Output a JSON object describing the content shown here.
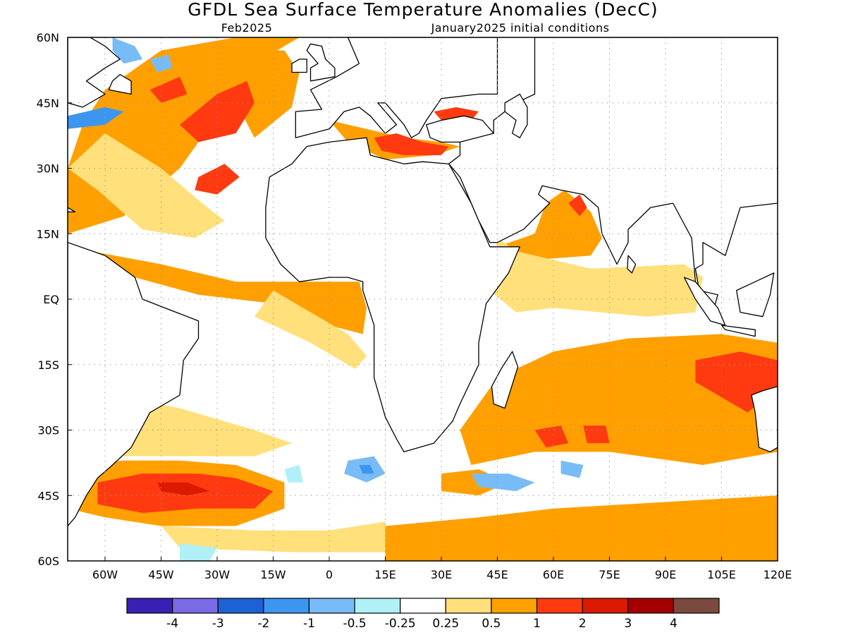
{
  "header": {
    "title": "GFDL Sea Surface Temperature Anomalies (DecC)",
    "valid_month": "Feb2025",
    "init_conditions": "January2025 initial conditions"
  },
  "map": {
    "lon_range": [
      -70,
      120
    ],
    "lat_range": [
      -60,
      60
    ],
    "gridlines": true,
    "x_ticks": [
      {
        "lon": -60,
        "label": "60W"
      },
      {
        "lon": -45,
        "label": "45W"
      },
      {
        "lon": -30,
        "label": "30W"
      },
      {
        "lon": -15,
        "label": "15W"
      },
      {
        "lon": 0,
        "label": "0"
      },
      {
        "lon": 15,
        "label": "15E"
      },
      {
        "lon": 30,
        "label": "30E"
      },
      {
        "lon": 45,
        "label": "45E"
      },
      {
        "lon": 60,
        "label": "60E"
      },
      {
        "lon": 75,
        "label": "75E"
      },
      {
        "lon": 90,
        "label": "90E"
      },
      {
        "lon": 105,
        "label": "105E"
      },
      {
        "lon": 120,
        "label": "120E"
      }
    ],
    "y_ticks": [
      {
        "lat": 60,
        "label": "60N"
      },
      {
        "lat": 45,
        "label": "45N"
      },
      {
        "lat": 30,
        "label": "30N"
      },
      {
        "lat": 15,
        "label": "15N"
      },
      {
        "lat": 0,
        "label": "EQ"
      },
      {
        "lat": -15,
        "label": "15S"
      },
      {
        "lat": -30,
        "label": "30S"
      },
      {
        "lat": -45,
        "label": "45S"
      },
      {
        "lat": -60,
        "label": "60S"
      }
    ]
  },
  "colorbar": {
    "colors": [
      "#3a1fb4",
      "#7b6ae6",
      "#1c62d4",
      "#3c96f0",
      "#78bcf7",
      "#b0f0f7",
      "#ffffff",
      "#ffe07a",
      "#ffa000",
      "#ff3a10",
      "#dc1a00",
      "#a50000",
      "#7a4a3e"
    ],
    "labels": [
      "-4",
      "-3",
      "-2",
      "-1",
      "-0.5",
      "-0.25",
      "0.25",
      "0.5",
      "1",
      "2",
      "3",
      "4"
    ]
  },
  "chart_data": {
    "type": "heatmap",
    "title": "GFDL Sea Surface Temperature Anomalies (DecC)",
    "xlim": [
      -70,
      120
    ],
    "ylim": [
      -60,
      60
    ],
    "bins": [
      -4,
      -3,
      -2,
      -1,
      -0.5,
      -0.25,
      0.25,
      0.5,
      1,
      2,
      3,
      4
    ],
    "regions": [
      {
        "level": "0.5",
        "color": "#ffa000",
        "poly": [
          [
            -70,
            15
          ],
          [
            -55,
            19
          ],
          [
            -40,
            30
          ],
          [
            -30,
            42
          ],
          [
            -20,
            50
          ],
          [
            -14,
            57
          ],
          [
            -8,
            60
          ],
          [
            -25,
            60
          ],
          [
            -45,
            57
          ],
          [
            -60,
            48
          ],
          [
            -66,
            40
          ],
          [
            -70,
            30
          ]
        ]
      },
      {
        "level": "0.5",
        "color": "#ffa000",
        "poly": [
          [
            -70,
            12
          ],
          [
            -45,
            8
          ],
          [
            -25,
            4
          ],
          [
            -10,
            4
          ],
          [
            8,
            4
          ],
          [
            10,
            -2
          ],
          [
            9,
            -8
          ],
          [
            0,
            -6
          ],
          [
            -15,
            -1
          ],
          [
            -35,
            1
          ],
          [
            -52,
            5
          ],
          [
            -62,
            9
          ]
        ]
      },
      {
        "level": "0.5",
        "color": "#ffa000",
        "poly": [
          [
            -20,
            37
          ],
          [
            -10,
            44
          ],
          [
            -8,
            52
          ],
          [
            -12,
            57
          ],
          [
            -22,
            57
          ],
          [
            -28,
            50
          ]
        ]
      },
      {
        "level": "0.25",
        "color": "#ffe07a",
        "poly": [
          [
            -60,
            38
          ],
          [
            -45,
            30
          ],
          [
            -34,
            22
          ],
          [
            -28,
            18
          ],
          [
            -36,
            14
          ],
          [
            -50,
            16
          ],
          [
            -62,
            25
          ],
          [
            -70,
            30
          ]
        ]
      },
      {
        "level": "0.25",
        "color": "#ffe07a",
        "poly": [
          [
            -15,
            2
          ],
          [
            -5,
            -3
          ],
          [
            5,
            -8
          ],
          [
            10,
            -13
          ],
          [
            7,
            -16
          ],
          [
            -5,
            -10
          ],
          [
            -20,
            -4
          ]
        ]
      },
      {
        "level": "1",
        "color": "#ff3a10",
        "poly": [
          [
            -40,
            40
          ],
          [
            -30,
            47
          ],
          [
            -22,
            50
          ],
          [
            -20,
            45
          ],
          [
            -25,
            38
          ],
          [
            -35,
            36
          ]
        ]
      },
      {
        "level": "1",
        "color": "#ff3a10",
        "poly": [
          [
            -48,
            48
          ],
          [
            -40,
            51
          ],
          [
            -38,
            47
          ],
          [
            -45,
            45
          ]
        ]
      },
      {
        "level": "1",
        "color": "#ff3a10",
        "poly": [
          [
            -35,
            28
          ],
          [
            -28,
            31
          ],
          [
            -24,
            28
          ],
          [
            -30,
            24
          ],
          [
            -36,
            25
          ]
        ]
      },
      {
        "level": "-0.5",
        "color": "#78bcf7",
        "poly": [
          [
            -58,
            60
          ],
          [
            -52,
            58
          ],
          [
            -50,
            55
          ],
          [
            -55,
            54
          ],
          [
            -58,
            57
          ]
        ]
      },
      {
        "level": "-0.5",
        "color": "#78bcf7",
        "poly": [
          [
            -48,
            55
          ],
          [
            -43,
            56
          ],
          [
            -42,
            53
          ],
          [
            -46,
            52
          ]
        ]
      },
      {
        "level": "-1",
        "color": "#3c96f0",
        "poly": [
          [
            -70,
            42
          ],
          [
            -60,
            44
          ],
          [
            -55,
            43
          ],
          [
            -60,
            40
          ],
          [
            -70,
            39
          ]
        ]
      },
      {
        "level": "0.5",
        "color": "#ffa000",
        "poly": [
          [
            0,
            41
          ],
          [
            10,
            39
          ],
          [
            20,
            37
          ],
          [
            30,
            36
          ],
          [
            35,
            35
          ],
          [
            28,
            33
          ],
          [
            15,
            32
          ],
          [
            5,
            36
          ]
        ]
      },
      {
        "level": "1",
        "color": "#ff3a10",
        "poly": [
          [
            12,
            37
          ],
          [
            18,
            38
          ],
          [
            25,
            36
          ],
          [
            32,
            35
          ],
          [
            30,
            33
          ],
          [
            20,
            33
          ],
          [
            14,
            34
          ]
        ]
      },
      {
        "level": "1",
        "color": "#ff3a10",
        "poly": [
          [
            28,
            43
          ],
          [
            34,
            44
          ],
          [
            40,
            43
          ],
          [
            38,
            41
          ],
          [
            30,
            41
          ]
        ]
      },
      {
        "level": "0.5",
        "color": "#ffa000",
        "poly": [
          [
            45,
            12
          ],
          [
            55,
            15
          ],
          [
            58,
            22
          ],
          [
            63,
            25
          ],
          [
            70,
            20
          ],
          [
            73,
            14
          ],
          [
            70,
            10
          ],
          [
            55,
            9
          ]
        ]
      },
      {
        "level": "1",
        "color": "#ff3a10",
        "poly": [
          [
            64,
            22
          ],
          [
            67,
            24
          ],
          [
            69,
            21
          ],
          [
            67,
            19
          ]
        ]
      },
      {
        "level": "0.5",
        "color": "#ffa000",
        "poly": [
          [
            50,
            5
          ],
          [
            70,
            6
          ],
          [
            85,
            7
          ],
          [
            95,
            6
          ],
          [
            98,
            0
          ],
          [
            95,
            -2
          ],
          [
            80,
            -3
          ],
          [
            60,
            -1
          ],
          [
            50,
            0
          ]
        ]
      },
      {
        "level": "1",
        "color": "#ff3a10",
        "poly": [
          [
            70,
            1
          ],
          [
            85,
            2
          ],
          [
            92,
            1
          ],
          [
            90,
            -1
          ],
          [
            75,
            -1
          ]
        ]
      },
      {
        "level": "0.25",
        "color": "#ffe07a",
        "poly": [
          [
            45,
            14
          ],
          [
            50,
            11
          ],
          [
            70,
            7
          ],
          [
            95,
            8
          ],
          [
            100,
            5
          ],
          [
            98,
            -3
          ],
          [
            85,
            -4
          ],
          [
            60,
            -2
          ],
          [
            50,
            -3
          ],
          [
            43,
            2
          ]
        ]
      },
      {
        "level": "0.5",
        "color": "#ffa000",
        "poly": [
          [
            35,
            -30
          ],
          [
            45,
            -18
          ],
          [
            60,
            -12
          ],
          [
            80,
            -9
          ],
          [
            105,
            -8
          ],
          [
            120,
            -10
          ],
          [
            120,
            -35
          ],
          [
            100,
            -38
          ],
          [
            75,
            -35
          ],
          [
            55,
            -35
          ],
          [
            38,
            -38
          ]
        ]
      },
      {
        "level": "1",
        "color": "#ff3a10",
        "poly": [
          [
            98,
            -14
          ],
          [
            110,
            -12
          ],
          [
            120,
            -14
          ],
          [
            120,
            -20
          ],
          [
            112,
            -26
          ],
          [
            104,
            -22
          ],
          [
            98,
            -19
          ]
        ]
      },
      {
        "level": "1",
        "color": "#ff3a10",
        "poly": [
          [
            55,
            -30
          ],
          [
            62,
            -29
          ],
          [
            64,
            -33
          ],
          [
            58,
            -34
          ]
        ]
      },
      {
        "level": "1",
        "color": "#ff3a10",
        "poly": [
          [
            68,
            -29
          ],
          [
            74,
            -29
          ],
          [
            75,
            -33
          ],
          [
            69,
            -33
          ]
        ]
      },
      {
        "level": "0.5",
        "color": "#ffa000",
        "poly": [
          [
            -70,
            -38
          ],
          [
            -55,
            -37
          ],
          [
            -40,
            -37
          ],
          [
            -25,
            -38
          ],
          [
            -12,
            -42
          ],
          [
            -12,
            -48
          ],
          [
            -25,
            -52
          ],
          [
            -45,
            -52
          ],
          [
            -60,
            -50
          ],
          [
            -70,
            -48
          ]
        ]
      },
      {
        "level": "1",
        "color": "#ff3a10",
        "poly": [
          [
            -62,
            -42
          ],
          [
            -50,
            -40
          ],
          [
            -35,
            -40
          ],
          [
            -25,
            -41
          ],
          [
            -15,
            -44
          ],
          [
            -20,
            -48
          ],
          [
            -35,
            -48
          ],
          [
            -50,
            -49
          ],
          [
            -62,
            -47
          ]
        ]
      },
      {
        "level": "2",
        "color": "#dc1a00",
        "poly": [
          [
            -46,
            -42
          ],
          [
            -38,
            -42
          ],
          [
            -32,
            -44
          ],
          [
            -38,
            -45
          ],
          [
            -45,
            -44
          ]
        ]
      },
      {
        "level": "0.5",
        "color": "#ffa000",
        "poly": [
          [
            15,
            -52
          ],
          [
            40,
            -50
          ],
          [
            60,
            -48
          ],
          [
            80,
            -47
          ],
          [
            100,
            -46
          ],
          [
            120,
            -45
          ],
          [
            120,
            -60
          ],
          [
            15,
            -60
          ]
        ]
      },
      {
        "level": "0.5",
        "color": "#ffa000",
        "poly": [
          [
            30,
            -40
          ],
          [
            40,
            -39
          ],
          [
            48,
            -42
          ],
          [
            40,
            -45
          ],
          [
            30,
            -44
          ]
        ]
      },
      {
        "level": "0.25",
        "color": "#ffe07a",
        "poly": [
          [
            -70,
            -20
          ],
          [
            -58,
            -22
          ],
          [
            -40,
            -25
          ],
          [
            -20,
            -30
          ],
          [
            -10,
            -33
          ],
          [
            -20,
            -36
          ],
          [
            -45,
            -36
          ],
          [
            -60,
            -36
          ],
          [
            -70,
            -35
          ]
        ]
      },
      {
        "level": "0.25",
        "color": "#ffe07a",
        "poly": [
          [
            -45,
            -52
          ],
          [
            -20,
            -53
          ],
          [
            0,
            -53
          ],
          [
            15,
            -51
          ],
          [
            15,
            -58
          ],
          [
            -10,
            -58
          ],
          [
            -40,
            -57
          ]
        ]
      },
      {
        "level": "-0.5",
        "color": "#78bcf7",
        "poly": [
          [
            5,
            -37
          ],
          [
            12,
            -36
          ],
          [
            15,
            -40
          ],
          [
            10,
            -42
          ],
          [
            4,
            -40
          ]
        ]
      },
      {
        "level": "-1",
        "color": "#3c96f0",
        "poly": [
          [
            8,
            -38
          ],
          [
            11,
            -38
          ],
          [
            12,
            -40
          ],
          [
            9,
            -40
          ]
        ]
      },
      {
        "level": "-0.5",
        "color": "#78bcf7",
        "poly": [
          [
            38,
            -40
          ],
          [
            48,
            -40
          ],
          [
            55,
            -42
          ],
          [
            50,
            -44
          ],
          [
            40,
            -43
          ]
        ]
      },
      {
        "level": "-0.5",
        "color": "#78bcf7",
        "poly": [
          [
            62,
            -37
          ],
          [
            68,
            -38
          ],
          [
            67,
            -41
          ],
          [
            62,
            -40
          ]
        ]
      },
      {
        "level": "-0.25",
        "color": "#b0f0f7",
        "poly": [
          [
            -40,
            -56
          ],
          [
            -30,
            -57
          ],
          [
            -32,
            -60
          ],
          [
            -40,
            -60
          ]
        ]
      },
      {
        "level": "-0.25",
        "color": "#b0f0f7",
        "poly": [
          [
            -12,
            -39
          ],
          [
            -8,
            -38
          ],
          [
            -7,
            -42
          ],
          [
            -11,
            -42
          ]
        ]
      }
    ]
  }
}
